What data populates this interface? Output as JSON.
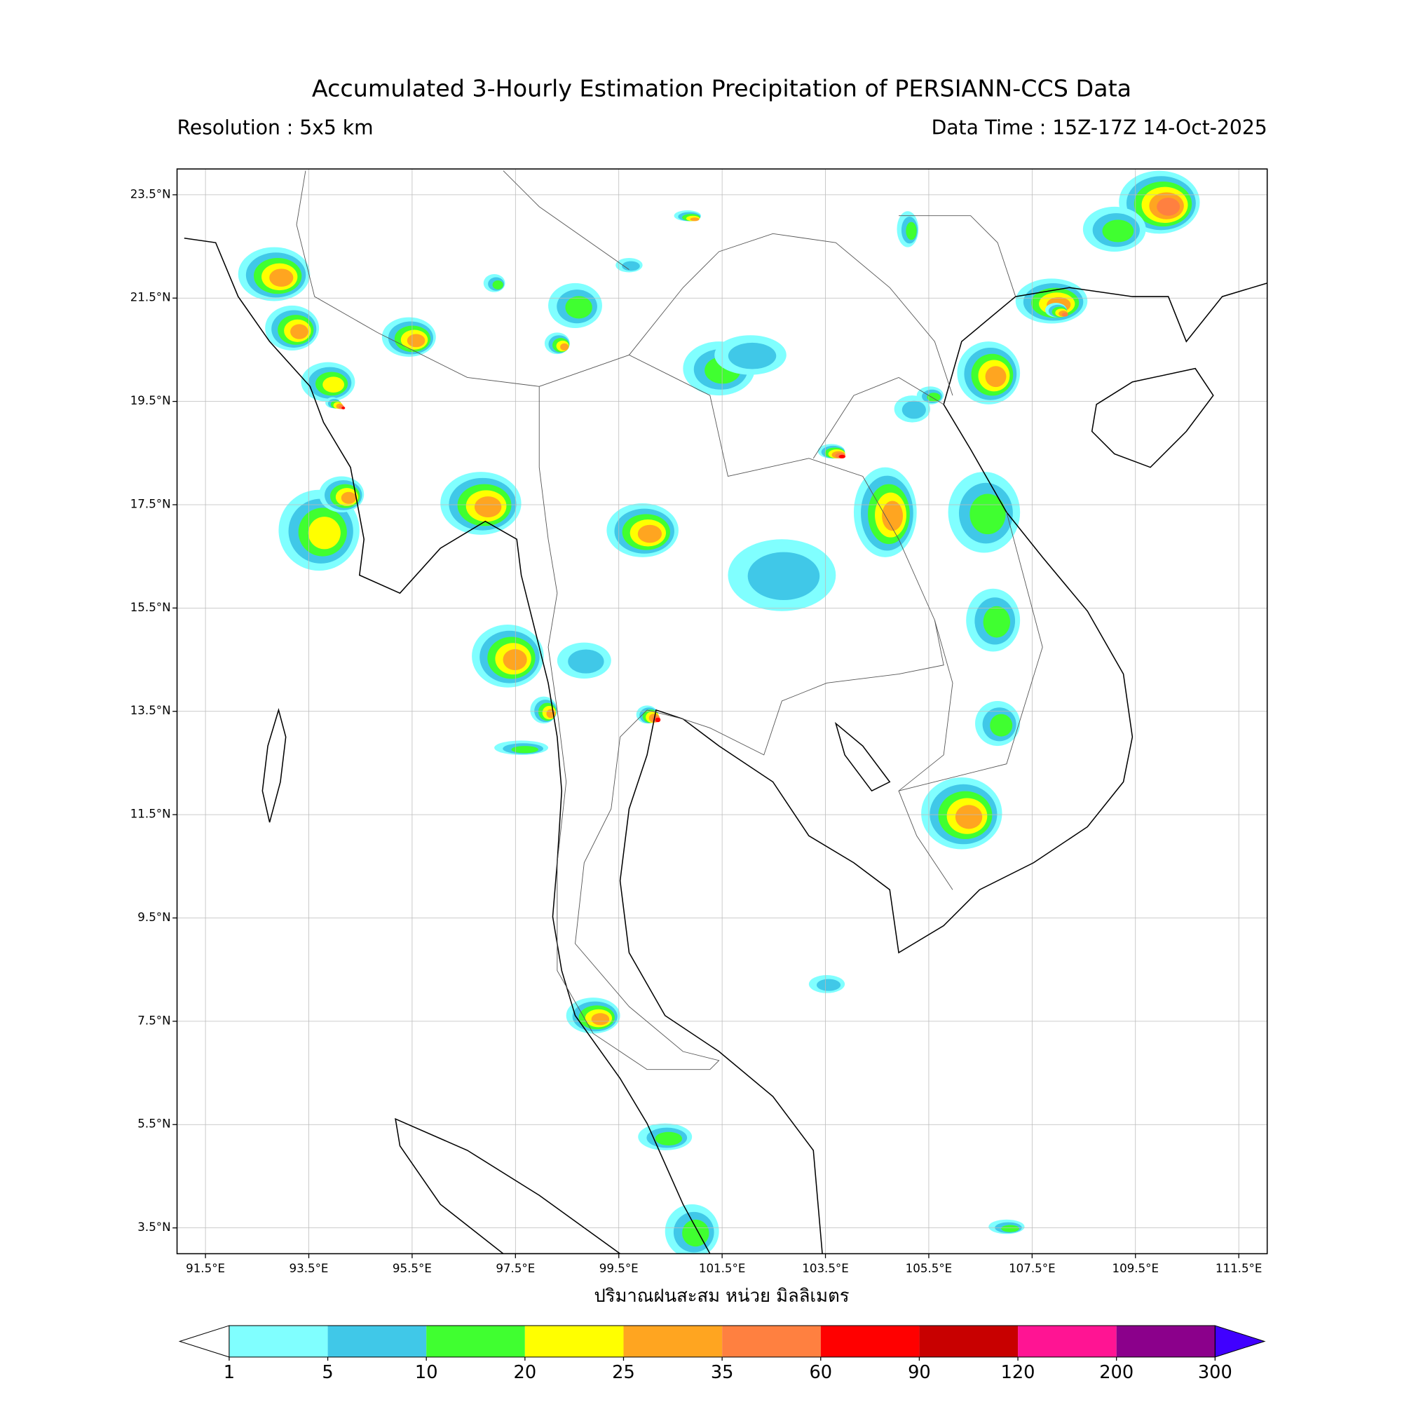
{
  "header": {
    "title": "Accumulated 3-Hourly Estimation Precipitation of PERSIANN-CCS Data",
    "resolution": "Resolution : 5x5 km",
    "data_time": "Data Time : 15Z-17Z 14-Oct-2025"
  },
  "map": {
    "xlim": [
      90.95,
      112.05
    ],
    "ylim": [
      3.0,
      24.0
    ],
    "grid": true,
    "xticks": [
      {
        "value": 91.5,
        "label": "91.5°E"
      },
      {
        "value": 93.5,
        "label": "93.5°E"
      },
      {
        "value": 95.5,
        "label": "95.5°E"
      },
      {
        "value": 97.5,
        "label": "97.5°E"
      },
      {
        "value": 99.5,
        "label": "99.5°E"
      },
      {
        "value": 101.5,
        "label": "101.5°E"
      },
      {
        "value": 103.5,
        "label": "103.5°E"
      },
      {
        "value": 105.5,
        "label": "105.5°E"
      },
      {
        "value": 107.5,
        "label": "107.5°E"
      },
      {
        "value": 109.5,
        "label": "109.5°E"
      },
      {
        "value": 111.5,
        "label": "111.5°E"
      }
    ],
    "yticks": [
      {
        "value": 23.5,
        "label": "23.5°N"
      },
      {
        "value": 21.5,
        "label": "21.5°N"
      },
      {
        "value": 19.5,
        "label": "19.5°N"
      },
      {
        "value": 17.5,
        "label": "17.5°N"
      },
      {
        "value": 15.5,
        "label": "15.5°N"
      },
      {
        "value": 13.5,
        "label": "13.5°N"
      },
      {
        "value": 11.5,
        "label": "11.5°N"
      },
      {
        "value": 9.5,
        "label": "9.5°N"
      },
      {
        "value": 7.5,
        "label": "7.5°N"
      },
      {
        "value": 5.5,
        "label": "5.5°N"
      },
      {
        "value": 3.5,
        "label": "3.5°N"
      }
    ],
    "xlabel": "ปริมาณฝนสะสม หน่วย มิลลิเมตร"
  },
  "colorbar": {
    "levels": [
      1,
      5,
      10,
      20,
      25,
      35,
      60,
      90,
      120,
      200,
      300
    ],
    "colors": [
      "#80ffff",
      "#40c8e8",
      "#40ff30",
      "#ffff00",
      "#ffa520",
      "#ff8040",
      "#ff0000",
      "#c80000",
      "#ff1493",
      "#8b008b"
    ],
    "under_color": "#ffffff",
    "over_color": "#4000ff"
  }
}
